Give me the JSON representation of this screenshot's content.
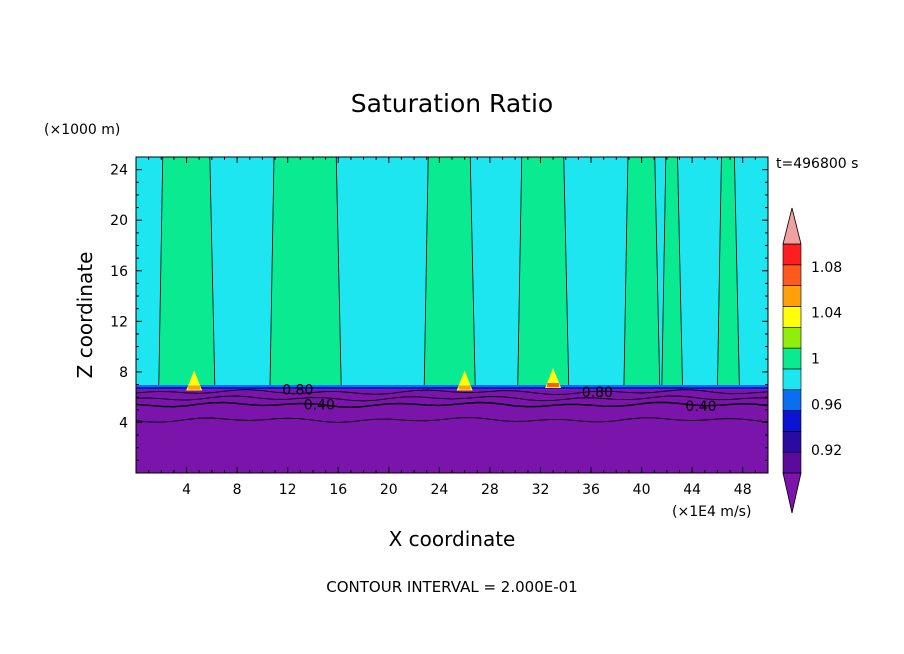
{
  "chart_data": {
    "type": "heatmap",
    "title": "Saturation Ratio",
    "xlabel": "X coordinate",
    "ylabel": "Z coordinate",
    "x_unit": "(×1E4 m/s)",
    "y_unit": "(×1000 m)",
    "time_label": "t=496800 s",
    "footer": "CONTOUR INTERVAL = 2.000E-01",
    "xlim": [
      0,
      50
    ],
    "ylim": [
      0,
      25
    ],
    "x_ticks": [
      4,
      8,
      12,
      16,
      20,
      24,
      28,
      32,
      36,
      40,
      44,
      48
    ],
    "y_ticks": [
      4,
      8,
      12,
      16,
      20,
      24
    ],
    "colorbar": {
      "levels": [
        0.9,
        0.92,
        0.94,
        0.96,
        0.98,
        1.0,
        1.02,
        1.04,
        1.06,
        1.08,
        1.1
      ],
      "labels": [
        "0.92",
        "0.96",
        "1",
        "1.04",
        "1.08"
      ],
      "label_values": [
        0.92,
        0.96,
        1.0,
        1.04,
        1.08
      ],
      "colors": [
        "#5a0a9c",
        "#2a0aa0",
        "#0a14d2",
        "#0a6ef0",
        "#1ee6f0",
        "#0aeb91",
        "#8ef00a",
        "#ffff0a",
        "#ffa00a",
        "#ff5a1e",
        "#ff1e1e"
      ],
      "under_color": "#7a14aa",
      "over_color": "#f0a0a0",
      "extend": "both"
    },
    "regions": {
      "cloud_top_z": 6.8,
      "background_value": 0.99,
      "dry_layer_value": 0.4,
      "supersaturated_columns": [
        {
          "x_start": 1.8,
          "x_end": 6.0
        },
        {
          "x_start": 10.6,
          "x_end": 16.0
        },
        {
          "x_start": 22.8,
          "x_end": 26.6
        },
        {
          "x_start": 30.2,
          "x_end": 34.0
        },
        {
          "x_start": 38.6,
          "x_end": 41.2
        },
        {
          "x_start": 41.6,
          "x_end": 43.0
        },
        {
          "x_start": 46.0,
          "x_end": 47.5
        }
      ],
      "hotspots": [
        {
          "x": 4.6,
          "z": 7.0,
          "value": 1.06
        },
        {
          "x": 26.0,
          "z": 7.0,
          "value": 1.06
        },
        {
          "x": 33.0,
          "z": 7.2,
          "value": 1.08
        }
      ]
    },
    "contour_labels": [
      {
        "x": 12.8,
        "z": 6.6,
        "text": "0.80"
      },
      {
        "x": 14.5,
        "z": 5.4,
        "text": "0.40"
      },
      {
        "x": 36.5,
        "z": 6.4,
        "text": "0.80"
      },
      {
        "x": 44.7,
        "z": 5.3,
        "text": "0.40"
      }
    ],
    "grid": false,
    "legend": "colorbar-right"
  }
}
